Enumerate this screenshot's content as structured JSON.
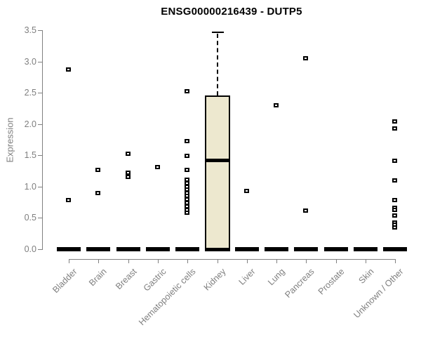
{
  "chart_data": {
    "type": "boxplot",
    "title": "ENSG00000216439 - DUTP5",
    "ylabel": "Expression",
    "ylim": [
      0.0,
      3.5
    ],
    "yticks": [
      0.0,
      0.5,
      1.0,
      1.5,
      2.0,
      2.5,
      3.0,
      3.5
    ],
    "grid": "off",
    "categories": [
      "Bladder",
      "Brain",
      "Breast",
      "Gastric",
      "Hematopoietic cells",
      "Kidney",
      "Liver",
      "Lung",
      "Pancreas",
      "Prostate",
      "Skin",
      "Unknown / Other"
    ],
    "boxes": [
      {
        "category": "Bladder",
        "median": 0.0,
        "q1": 0.0,
        "q3": 0.0,
        "whisker_low": 0.0,
        "whisker_high": 0.0,
        "outliers": [
          2.87,
          0.79
        ]
      },
      {
        "category": "Brain",
        "median": 0.0,
        "q1": 0.0,
        "q3": 0.0,
        "whisker_low": 0.0,
        "whisker_high": 0.0,
        "outliers": [
          1.27,
          0.9
        ]
      },
      {
        "category": "Breast",
        "median": 0.0,
        "q1": 0.0,
        "q3": 0.0,
        "whisker_low": 0.0,
        "whisker_high": 0.0,
        "outliers": [
          1.53,
          1.22,
          1.16
        ]
      },
      {
        "category": "Gastric",
        "median": 0.0,
        "q1": 0.0,
        "q3": 0.0,
        "whisker_low": 0.0,
        "whisker_high": 0.0,
        "outliers": [
          1.31
        ]
      },
      {
        "category": "Hematopoietic cells",
        "median": 0.0,
        "q1": 0.0,
        "q3": 0.0,
        "whisker_low": 0.0,
        "whisker_high": 0.0,
        "outliers": [
          2.52,
          1.73,
          1.49,
          1.27,
          1.11,
          1.05,
          1.0,
          0.95,
          0.9,
          0.85,
          0.8,
          0.74,
          0.68,
          0.63,
          0.58
        ]
      },
      {
        "category": "Kidney",
        "median": 1.43,
        "q1": 0.0,
        "q3": 2.46,
        "whisker_low": 0.0,
        "whisker_high": 3.48,
        "outliers": []
      },
      {
        "category": "Liver",
        "median": 0.0,
        "q1": 0.0,
        "q3": 0.0,
        "whisker_low": 0.0,
        "whisker_high": 0.0,
        "outliers": [
          0.93
        ]
      },
      {
        "category": "Lung",
        "median": 0.0,
        "q1": 0.0,
        "q3": 0.0,
        "whisker_low": 0.0,
        "whisker_high": 0.0,
        "outliers": [
          2.3
        ]
      },
      {
        "category": "Pancreas",
        "median": 0.0,
        "q1": 0.0,
        "q3": 0.0,
        "whisker_low": 0.0,
        "whisker_high": 0.0,
        "outliers": [
          3.05,
          0.62
        ]
      },
      {
        "category": "Prostate",
        "median": 0.0,
        "q1": 0.0,
        "q3": 0.0,
        "whisker_low": 0.0,
        "whisker_high": 0.0,
        "outliers": []
      },
      {
        "category": "Skin",
        "median": 0.0,
        "q1": 0.0,
        "q3": 0.0,
        "whisker_low": 0.0,
        "whisker_high": 0.0,
        "outliers": []
      },
      {
        "category": "Unknown / Other",
        "median": 0.0,
        "q1": 0.0,
        "q3": 0.0,
        "whisker_low": 0.0,
        "whisker_high": 0.0,
        "outliers": [
          2.04,
          1.93,
          1.41,
          1.1,
          0.79,
          0.66,
          0.63,
          0.54,
          0.43,
          0.39,
          0.35
        ]
      }
    ],
    "colors": {
      "box_fill": "#EDE8CF",
      "box_border": "#000000",
      "outlier": "#000000",
      "axis": "#808080",
      "label_text": "#7f7f7f",
      "title_text": "#000000",
      "background": "#ffffff"
    }
  }
}
